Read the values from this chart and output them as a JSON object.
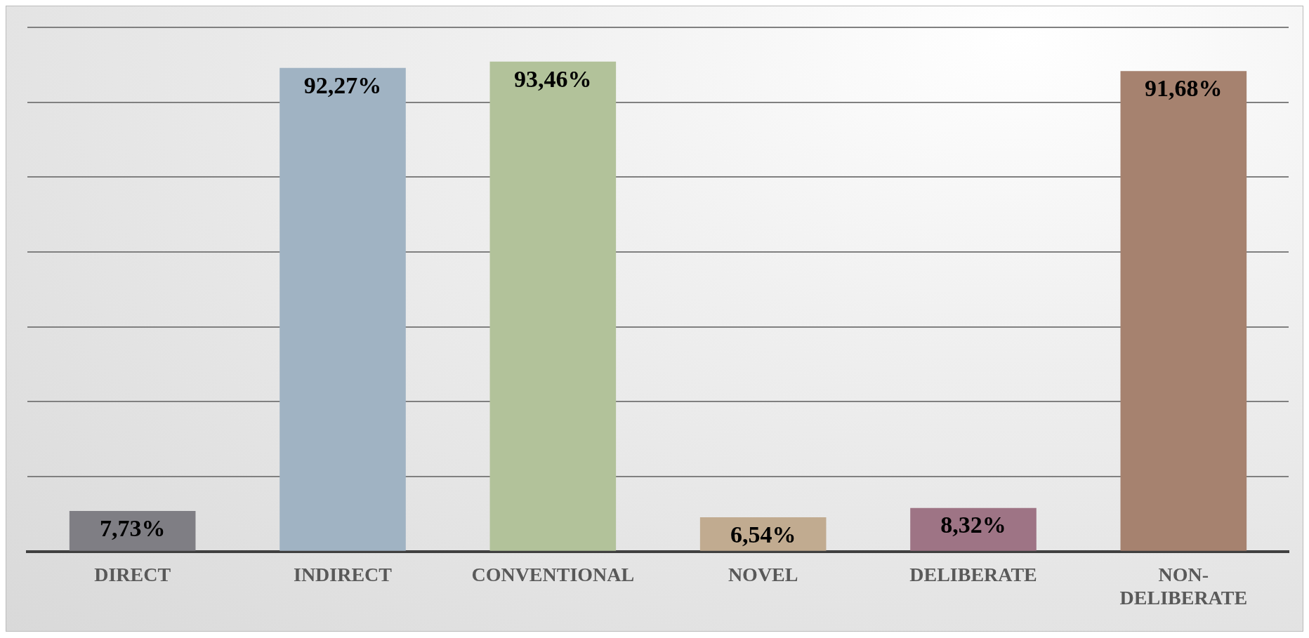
{
  "chart_data": {
    "type": "bar",
    "categories": [
      "DIRECT",
      "INDIRECT",
      "CONVENTIONAL",
      "NOVEL",
      "DELIBERATE",
      "NON-DELIBERATE"
    ],
    "values": [
      7.73,
      92.27,
      93.46,
      6.54,
      8.32,
      91.68
    ],
    "colors": [
      "#7f7e84",
      "#a0b3c3",
      "#b2c29a",
      "#c1ab90",
      "#9e7485",
      "#a6826f"
    ],
    "value_labels": [
      "7,73%",
      "92,27%",
      "93,46%",
      "6,54%",
      "8,32%",
      "91,68%"
    ],
    "tick_labels": "x",
    "grid": "y"
  }
}
